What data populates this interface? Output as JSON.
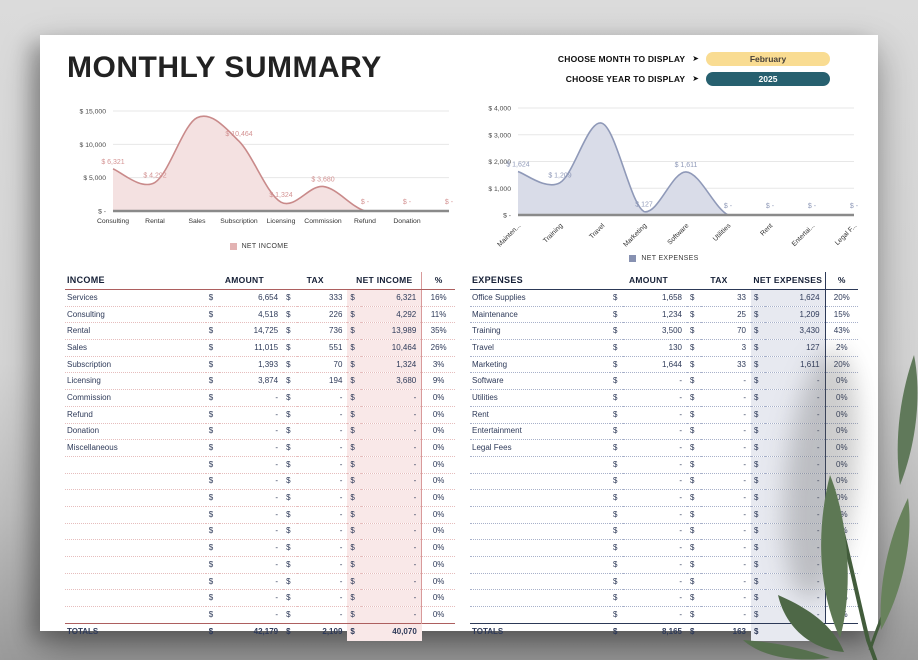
{
  "title": "MONTHLY SUMMARY",
  "controls": {
    "rows": [
      {
        "label": "CHOOSE MONTH TO DISPLAY",
        "arrow": "➤",
        "value": "February",
        "pill_bg": "#f9dc92",
        "pill_text_color": "#46403a"
      },
      {
        "label": "CHOOSE YEAR TO DISPLAY",
        "arrow": "➤",
        "value": "2025",
        "pill_bg": "#27606f",
        "pill_text_color": "#ffffff"
      }
    ]
  },
  "chart_data": [
    {
      "type": "area",
      "legend": "NET INCOME",
      "x_labels": [
        "Consulting",
        "Rental",
        "Sales",
        "Subscription",
        "Licensing",
        "Commission",
        "Refund",
        "Donation",
        ""
      ],
      "values": [
        6321,
        4292,
        13989,
        10464,
        1324,
        3680,
        0,
        0,
        0
      ],
      "value_labels": [
        "$ 6,321",
        "$ 4,292",
        null,
        "$ 10,464",
        "$ 1,324",
        "$ 3,680",
        "$ -",
        "$ -",
        "$ -"
      ],
      "y_tick_values": [
        0,
        5000,
        10000,
        15000
      ],
      "y_tick_labels": [
        "$ -",
        "$ 5,000",
        "$ 10,000",
        "$ 15,000"
      ],
      "ylim": [
        0,
        15000
      ],
      "grid": true,
      "legend_position": "bottom",
      "rotate_x_labels": false,
      "stroke": "#c98a8a",
      "fill": "#f4e1e1",
      "label_color": "#d49393",
      "swatch": "#e3b3b3"
    },
    {
      "type": "area",
      "legend": "NET EXPENSES",
      "x_labels": [
        "Mainten...",
        "Training",
        "Travel",
        "Marketing",
        "Software",
        "Utilities",
        "Rent",
        "Entertai...",
        "Legal F..."
      ],
      "values": [
        1624,
        1209,
        3430,
        127,
        1611,
        0,
        0,
        0,
        0
      ],
      "value_labels": [
        "$ 1,624",
        "$ 1,209",
        null,
        "$ 127",
        "$ 1,611",
        "$ -",
        "$ -",
        "$ -",
        "$ -"
      ],
      "y_tick_values": [
        0,
        1000,
        2000,
        3000,
        4000
      ],
      "y_tick_labels": [
        "$ -",
        "$ 1,000",
        "$ 2,000",
        "$ 3,000",
        "$ 4,000"
      ],
      "ylim": [
        0,
        4000
      ],
      "grid": true,
      "legend_position": "bottom",
      "rotate_x_labels": true,
      "stroke": "#8f99b8",
      "fill": "#d9dce8",
      "label_color": "#8f99b8",
      "swatch": "#8791b1"
    }
  ],
  "income_table": {
    "currency": "$",
    "headers": {
      "category": "INCOME",
      "amount": "AMOUNT",
      "tax": "TAX",
      "net": "NET INCOME",
      "pct": "%"
    },
    "rows": [
      [
        "Services",
        "6,654",
        "333",
        "6,321",
        "16%"
      ],
      [
        "Consulting",
        "4,518",
        "226",
        "4,292",
        "11%"
      ],
      [
        "Rental",
        "14,725",
        "736",
        "13,989",
        "35%"
      ],
      [
        "Sales",
        "11,015",
        "551",
        "10,464",
        "26%"
      ],
      [
        "Subscription",
        "1,393",
        "70",
        "1,324",
        "3%"
      ],
      [
        "Licensing",
        "3,874",
        "194",
        "3,680",
        "9%"
      ],
      [
        "Commission",
        "-",
        "-",
        "-",
        "0%"
      ],
      [
        "Refund",
        "-",
        "-",
        "-",
        "0%"
      ],
      [
        "Donation",
        "-",
        "-",
        "-",
        "0%"
      ],
      [
        "Miscellaneous",
        "-",
        "-",
        "-",
        "0%"
      ],
      [
        "",
        "-",
        "-",
        "-",
        "0%"
      ],
      [
        "",
        "-",
        "-",
        "-",
        "0%"
      ],
      [
        "",
        "-",
        "-",
        "-",
        "0%"
      ],
      [
        "",
        "-",
        "-",
        "-",
        "0%"
      ],
      [
        "",
        "-",
        "-",
        "-",
        "0%"
      ],
      [
        "",
        "-",
        "-",
        "-",
        "0%"
      ],
      [
        "",
        "-",
        "-",
        "-",
        "0%"
      ],
      [
        "",
        "-",
        "-",
        "-",
        "0%"
      ],
      [
        "",
        "-",
        "-",
        "-",
        "0%"
      ],
      [
        "",
        "-",
        "-",
        "-",
        "0%"
      ]
    ],
    "totals": [
      "TOTALS",
      "42,179",
      "2,109",
      "40,070",
      ""
    ]
  },
  "expenses_table": {
    "currency": "$",
    "headers": {
      "category": "EXPENSES",
      "amount": "AMOUNT",
      "tax": "TAX",
      "net": "NET EXPENSES",
      "pct": "%"
    },
    "rows": [
      [
        "Office Supplies",
        "1,658",
        "33",
        "1,624",
        "20%"
      ],
      [
        "Maintenance",
        "1,234",
        "25",
        "1,209",
        "15%"
      ],
      [
        "Training",
        "3,500",
        "70",
        "3,430",
        "43%"
      ],
      [
        "Travel",
        "130",
        "3",
        "127",
        "2%"
      ],
      [
        "Marketing",
        "1,644",
        "33",
        "1,611",
        "20%"
      ],
      [
        "Software",
        "-",
        "-",
        "-",
        "0%"
      ],
      [
        "Utilities",
        "-",
        "-",
        "-",
        "0%"
      ],
      [
        "Rent",
        "-",
        "-",
        "-",
        "0%"
      ],
      [
        "Entertainment",
        "-",
        "-",
        "-",
        "0%"
      ],
      [
        "Legal Fees",
        "-",
        "-",
        "-",
        "0%"
      ],
      [
        "",
        "-",
        "-",
        "-",
        "0%"
      ],
      [
        "",
        "-",
        "-",
        "-",
        "0%"
      ],
      [
        "",
        "-",
        "-",
        "-",
        "0%"
      ],
      [
        "",
        "-",
        "-",
        "-",
        "0%"
      ],
      [
        "",
        "-",
        "-",
        "-",
        "0%"
      ],
      [
        "",
        "-",
        "-",
        "-",
        "0%"
      ],
      [
        "",
        "-",
        "-",
        "-",
        "0%"
      ],
      [
        "",
        "-",
        "-",
        "-",
        "0%"
      ],
      [
        "",
        "-",
        "-",
        "-",
        "0%"
      ],
      [
        "",
        "-",
        "-",
        "-",
        "0%"
      ]
    ],
    "totals": [
      "TOTALS",
      "8,165",
      "163",
      "8,001",
      ""
    ]
  },
  "decor": {
    "leaf_color_dark": "#4e6847",
    "leaf_color_mid": "#5d7854",
    "leaf_color_light": "#68825c",
    "stem_color": "#425c3b"
  }
}
